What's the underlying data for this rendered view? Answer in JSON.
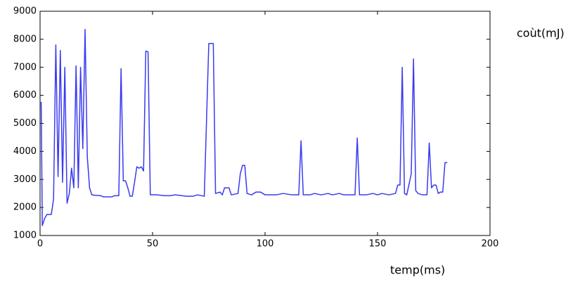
{
  "chart_data": {
    "type": "line",
    "x_label": "temp(ms)",
    "y_label": "coùt(mJ)",
    "xlim": [
      0,
      200
    ],
    "ylim": [
      1000,
      9000
    ],
    "xticks": [
      0,
      50,
      100,
      150,
      200
    ],
    "yticks": [
      1000,
      2000,
      3000,
      4000,
      5000,
      6000,
      7000,
      8000,
      9000
    ],
    "grid": false,
    "x": [
      0,
      0.5,
      1,
      2,
      3,
      4,
      5,
      6,
      7,
      8,
      9,
      10,
      11,
      12,
      13,
      14,
      15,
      16,
      17,
      18,
      19,
      20,
      21,
      22,
      23,
      25,
      27,
      28,
      30,
      32,
      33,
      35,
      36,
      37,
      38,
      39,
      40,
      41,
      42,
      43,
      44,
      45,
      46,
      47,
      48,
      49,
      50,
      52,
      55,
      58,
      60,
      65,
      68,
      70,
      73,
      75,
      77,
      78,
      80,
      81,
      82,
      84,
      85,
      88,
      89,
      90,
      91,
      92,
      94,
      96,
      98,
      100,
      105,
      108,
      112,
      115,
      116,
      117,
      120,
      122,
      125,
      128,
      130,
      133,
      135,
      140,
      141,
      142,
      145,
      148,
      150,
      152,
      155,
      158,
      159,
      160,
      161,
      162,
      163,
      165,
      166,
      167,
      168,
      170,
      172,
      173,
      174,
      175,
      176,
      177,
      178,
      179,
      180,
      181
    ],
    "series": [
      {
        "name": "coùt",
        "color": "#3a3af0",
        "values": [
          5750,
          5750,
          1350,
          1600,
          1750,
          1750,
          1750,
          2300,
          7800,
          3100,
          7600,
          2900,
          7000,
          2150,
          2500,
          3400,
          2700,
          7050,
          2700,
          7000,
          4100,
          8350,
          3800,
          2700,
          2450,
          2430,
          2420,
          2380,
          2380,
          2380,
          2420,
          2420,
          6950,
          2950,
          2950,
          2700,
          2400,
          2400,
          2900,
          3450,
          3400,
          3450,
          3300,
          7580,
          7550,
          2450,
          2450,
          2450,
          2420,
          2420,
          2450,
          2400,
          2400,
          2450,
          2400,
          7850,
          7850,
          2500,
          2550,
          2450,
          2700,
          2700,
          2450,
          2500,
          3200,
          3500,
          3500,
          2500,
          2450,
          2550,
          2550,
          2450,
          2450,
          2500,
          2450,
          2450,
          4380,
          2450,
          2450,
          2500,
          2450,
          2500,
          2450,
          2500,
          2450,
          2450,
          4480,
          2450,
          2450,
          2500,
          2450,
          2500,
          2450,
          2500,
          2800,
          2800,
          7000,
          2500,
          2450,
          3200,
          7300,
          2600,
          2500,
          2450,
          2450,
          4300,
          2700,
          2800,
          2800,
          2500,
          2550,
          2550,
          3600,
          3600
        ]
      }
    ]
  }
}
